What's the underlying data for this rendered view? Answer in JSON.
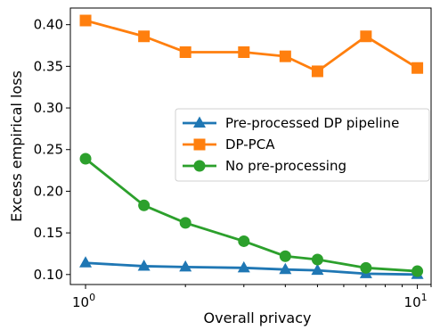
{
  "chart_data": {
    "type": "line",
    "xlabel": "Overall privacy",
    "ylabel": "Excess empirical loss",
    "xscale": "log",
    "xlim": [
      0.9,
      11
    ],
    "ylim": [
      0.088,
      0.42
    ],
    "x_ticks": [
      {
        "value": 1,
        "base": "10",
        "exp": "0"
      },
      {
        "value": 10,
        "base": "10",
        "exp": "1"
      }
    ],
    "y_ticks": [
      {
        "value": 0.1,
        "label": "0.10"
      },
      {
        "value": 0.15,
        "label": "0.15"
      },
      {
        "value": 0.2,
        "label": "0.20"
      },
      {
        "value": 0.25,
        "label": "0.25"
      },
      {
        "value": 0.3,
        "label": "0.30"
      },
      {
        "value": 0.35,
        "label": "0.35"
      },
      {
        "value": 0.4,
        "label": "0.40"
      }
    ],
    "grid": false,
    "legend_position": "center-right",
    "series": [
      {
        "name": "Pre-processed DP pipeline",
        "color": "#1f77b4",
        "marker": "triangle",
        "x": [
          1,
          1.5,
          2,
          3,
          4,
          5,
          7,
          10
        ],
        "y": [
          0.114,
          0.11,
          0.109,
          0.108,
          0.106,
          0.105,
          0.101,
          0.1
        ]
      },
      {
        "name": "DP-PCA",
        "color": "#ff7f0e",
        "marker": "square",
        "x": [
          1,
          1.5,
          2,
          3,
          4,
          5,
          7,
          10
        ],
        "y": [
          0.405,
          0.386,
          0.367,
          0.367,
          0.362,
          0.344,
          0.386,
          0.348
        ]
      },
      {
        "name": "No pre-processing",
        "color": "#2ca02c",
        "marker": "circle",
        "x": [
          1,
          1.5,
          2,
          3,
          4,
          5,
          7,
          10
        ],
        "y": [
          0.239,
          0.183,
          0.162,
          0.14,
          0.122,
          0.118,
          0.108,
          0.104
        ]
      }
    ]
  }
}
